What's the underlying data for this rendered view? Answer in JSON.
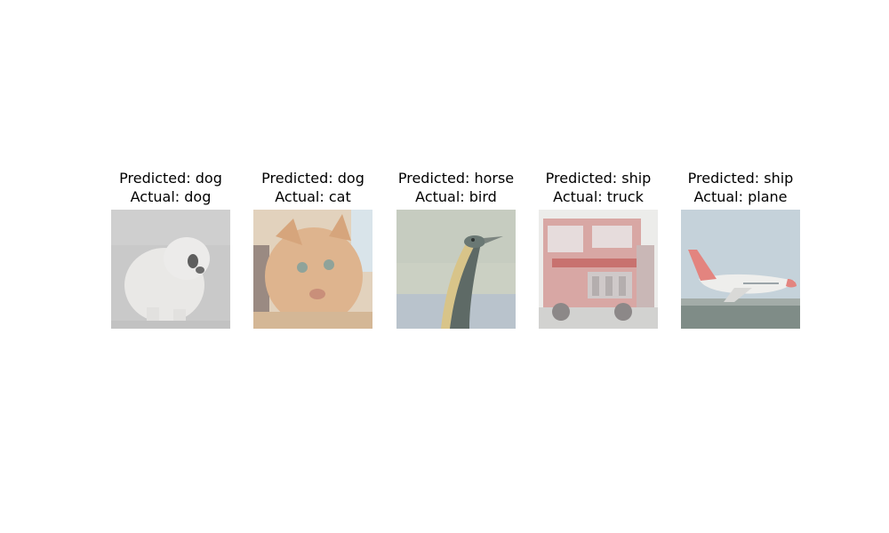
{
  "panels": [
    {
      "predicted": "Predicted: dog",
      "actual": "Actual: dog"
    },
    {
      "predicted": "Predicted: dog",
      "actual": "Actual: cat"
    },
    {
      "predicted": "Predicted: horse",
      "actual": "Actual: bird"
    },
    {
      "predicted": "Predicted: ship",
      "actual": "Actual: truck"
    },
    {
      "predicted": "Predicted: ship",
      "actual": "Actual: plane"
    }
  ],
  "colors": {
    "background": "#ffffff",
    "text": "#000000"
  }
}
